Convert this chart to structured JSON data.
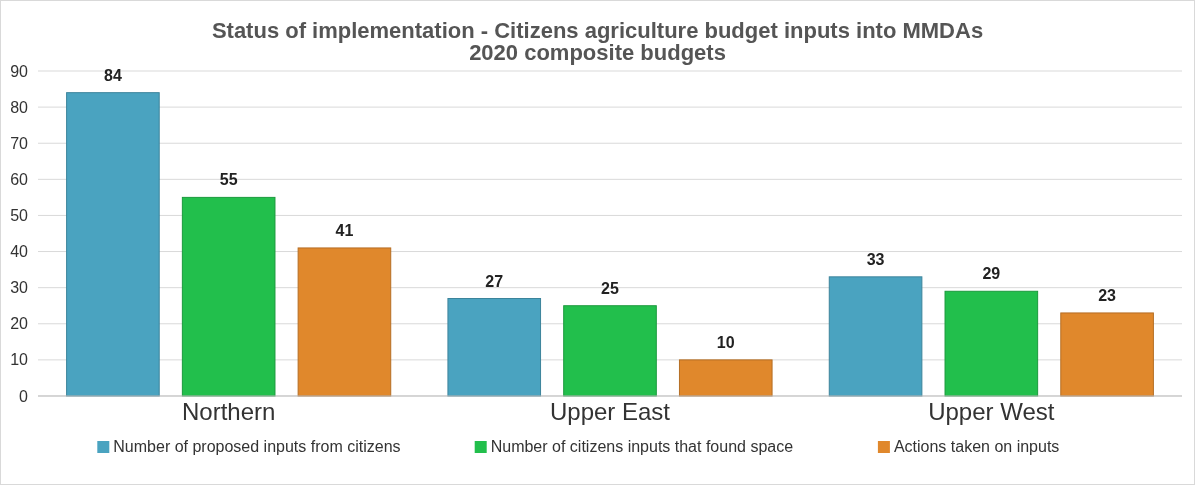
{
  "chart_data": {
    "type": "bar",
    "title": "Status of implementation - Citizens agriculture budget inputs into MMDAs 2020 composite budgets",
    "categories": [
      "Northern",
      "Upper East",
      "Upper West"
    ],
    "series": [
      {
        "name": "Number of proposed inputs from citizens",
        "color": "#4aa3c0",
        "values": [
          84,
          27,
          33
        ]
      },
      {
        "name": "Number of citizens inputs that found space",
        "color": "#22bf4c",
        "values": [
          55,
          25,
          29
        ]
      },
      {
        "name": "Actions taken on inputs",
        "color": "#e0882c",
        "values": [
          41,
          10,
          23
        ]
      }
    ],
    "ylim": [
      0,
      90
    ],
    "yticks": [
      0,
      10,
      20,
      30,
      40,
      50,
      60,
      70,
      80,
      90
    ],
    "grid": "y",
    "legend": "bottom",
    "data_labels": true
  }
}
